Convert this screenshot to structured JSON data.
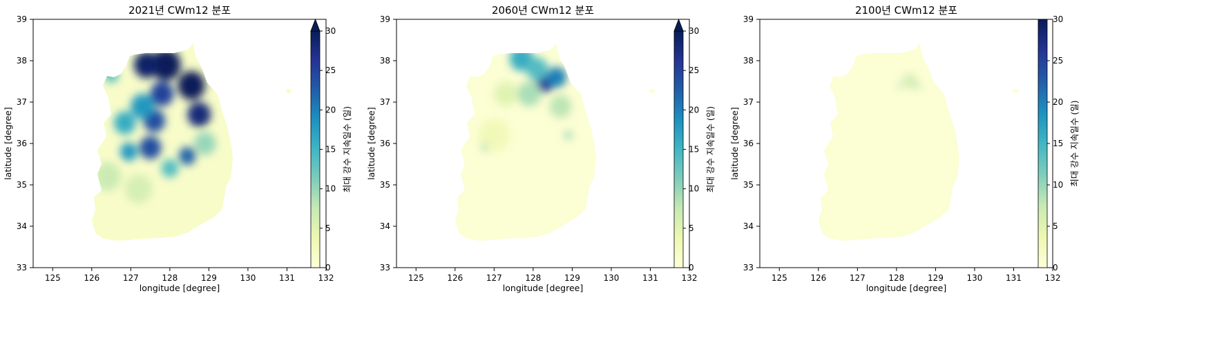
{
  "colors": {
    "cmap": [
      "#ffffd9",
      "#edf8b1",
      "#c7e9b4",
      "#7fcdbb",
      "#41b6c4",
      "#1d91c0",
      "#225ea8",
      "#253494",
      "#081d58"
    ],
    "axis": "#000000",
    "background": "#ffffff"
  },
  "chart_data": [
    {
      "type": "heatmap",
      "title": "2021년 CWm12 분포",
      "xlabel": "longitude [degree]",
      "ylabel": "latitude [degree]",
      "xlim": [
        124.5,
        132
      ],
      "ylim": [
        33,
        39
      ],
      "xticks": [
        "125",
        "126",
        "127",
        "128",
        "129",
        "130",
        "131",
        "132"
      ],
      "yticks": [
        "33",
        "34",
        "35",
        "36",
        "37",
        "38",
        "39"
      ],
      "colorbar": {
        "label": "최대 강수 지속일수 (일)",
        "range": [
          0,
          30
        ],
        "ticks": [
          "0",
          "5",
          "10",
          "15",
          "20",
          "25",
          "30"
        ],
        "extend_max": true
      },
      "grid": false,
      "hotspots": [
        {
          "lon": 127.9,
          "lat": 37.9,
          "value": 30,
          "r": 0.38
        },
        {
          "lon": 127.4,
          "lat": 37.9,
          "value": 29,
          "r": 0.32
        },
        {
          "lon": 128.55,
          "lat": 37.4,
          "value": 30,
          "r": 0.35
        },
        {
          "lon": 128.75,
          "lat": 36.7,
          "value": 28,
          "r": 0.3
        },
        {
          "lon": 127.8,
          "lat": 37.2,
          "value": 25,
          "r": 0.3
        },
        {
          "lon": 127.6,
          "lat": 36.55,
          "value": 24,
          "r": 0.28
        },
        {
          "lon": 127.3,
          "lat": 36.9,
          "value": 18,
          "r": 0.3
        },
        {
          "lon": 126.85,
          "lat": 36.5,
          "value": 16,
          "r": 0.28
        },
        {
          "lon": 127.5,
          "lat": 35.9,
          "value": 24,
          "r": 0.28
        },
        {
          "lon": 126.95,
          "lat": 35.8,
          "value": 18,
          "r": 0.22
        },
        {
          "lon": 128.45,
          "lat": 35.7,
          "value": 22,
          "r": 0.22
        },
        {
          "lon": 126.5,
          "lat": 37.65,
          "value": 14,
          "r": 0.18
        },
        {
          "lon": 128.0,
          "lat": 35.4,
          "value": 14,
          "r": 0.22
        },
        {
          "lon": 126.4,
          "lat": 35.2,
          "value": 7,
          "r": 0.35
        },
        {
          "lon": 127.2,
          "lat": 34.9,
          "value": 6,
          "r": 0.35
        },
        {
          "lon": 128.9,
          "lat": 36.0,
          "value": 10,
          "r": 0.28
        }
      ]
    },
    {
      "type": "heatmap",
      "title": "2060년 CWm12 분포",
      "xlabel": "longitude [degree]",
      "ylabel": "latitude [degree]",
      "xlim": [
        124.5,
        132
      ],
      "ylim": [
        33,
        39
      ],
      "xticks": [
        "125",
        "126",
        "127",
        "128",
        "129",
        "130",
        "131",
        "132"
      ],
      "yticks": [
        "33",
        "34",
        "35",
        "36",
        "37",
        "38",
        "39"
      ],
      "colorbar": {
        "label": "최대 강수 지속일수 (일)",
        "range": [
          0,
          30
        ],
        "ticks": [
          "0",
          "5",
          "10",
          "15",
          "20",
          "25",
          "30"
        ],
        "extend_max": true
      },
      "grid": false,
      "hotspots": [
        {
          "lon": 128.3,
          "lat": 37.45,
          "value": 26,
          "r": 0.22
        },
        {
          "lon": 128.6,
          "lat": 37.6,
          "value": 20,
          "r": 0.25
        },
        {
          "lon": 127.7,
          "lat": 38.05,
          "value": 16,
          "r": 0.3
        },
        {
          "lon": 128.1,
          "lat": 37.8,
          "value": 14,
          "r": 0.28
        },
        {
          "lon": 127.9,
          "lat": 37.2,
          "value": 9,
          "r": 0.3
        },
        {
          "lon": 128.7,
          "lat": 36.9,
          "value": 8,
          "r": 0.28
        },
        {
          "lon": 127.3,
          "lat": 37.2,
          "value": 5,
          "r": 0.3
        },
        {
          "lon": 127.0,
          "lat": 36.2,
          "value": 3,
          "r": 0.4
        },
        {
          "lon": 126.75,
          "lat": 35.9,
          "value": 10,
          "r": 0.08
        },
        {
          "lon": 128.9,
          "lat": 36.2,
          "value": 10,
          "r": 0.1
        }
      ]
    },
    {
      "type": "heatmap",
      "title": "2100년 CWm12 분포",
      "xlabel": "longitude [degree]",
      "ylabel": "latitude [degree]",
      "xlim": [
        124.5,
        132
      ],
      "ylim": [
        33,
        39
      ],
      "xticks": [
        "125",
        "126",
        "127",
        "128",
        "129",
        "130",
        "131",
        "132"
      ],
      "yticks": [
        "33",
        "34",
        "35",
        "36",
        "37",
        "38",
        "39"
      ],
      "colorbar": {
        "label": "최대 강수 지속일수 (일)",
        "range": [
          0,
          30
        ],
        "ticks": [
          "0",
          "5",
          "10",
          "15",
          "20",
          "25",
          "30"
        ],
        "extend_max": false
      },
      "grid": false,
      "hotspots": [
        {
          "lon": 128.35,
          "lat": 37.5,
          "value": 6,
          "r": 0.18
        },
        {
          "lon": 128.1,
          "lat": 37.4,
          "value": 12,
          "r": 0.05
        },
        {
          "lon": 128.55,
          "lat": 37.38,
          "value": 12,
          "r": 0.05
        },
        {
          "lon": 128.3,
          "lat": 37.6,
          "value": 8,
          "r": 0.06
        }
      ]
    }
  ]
}
